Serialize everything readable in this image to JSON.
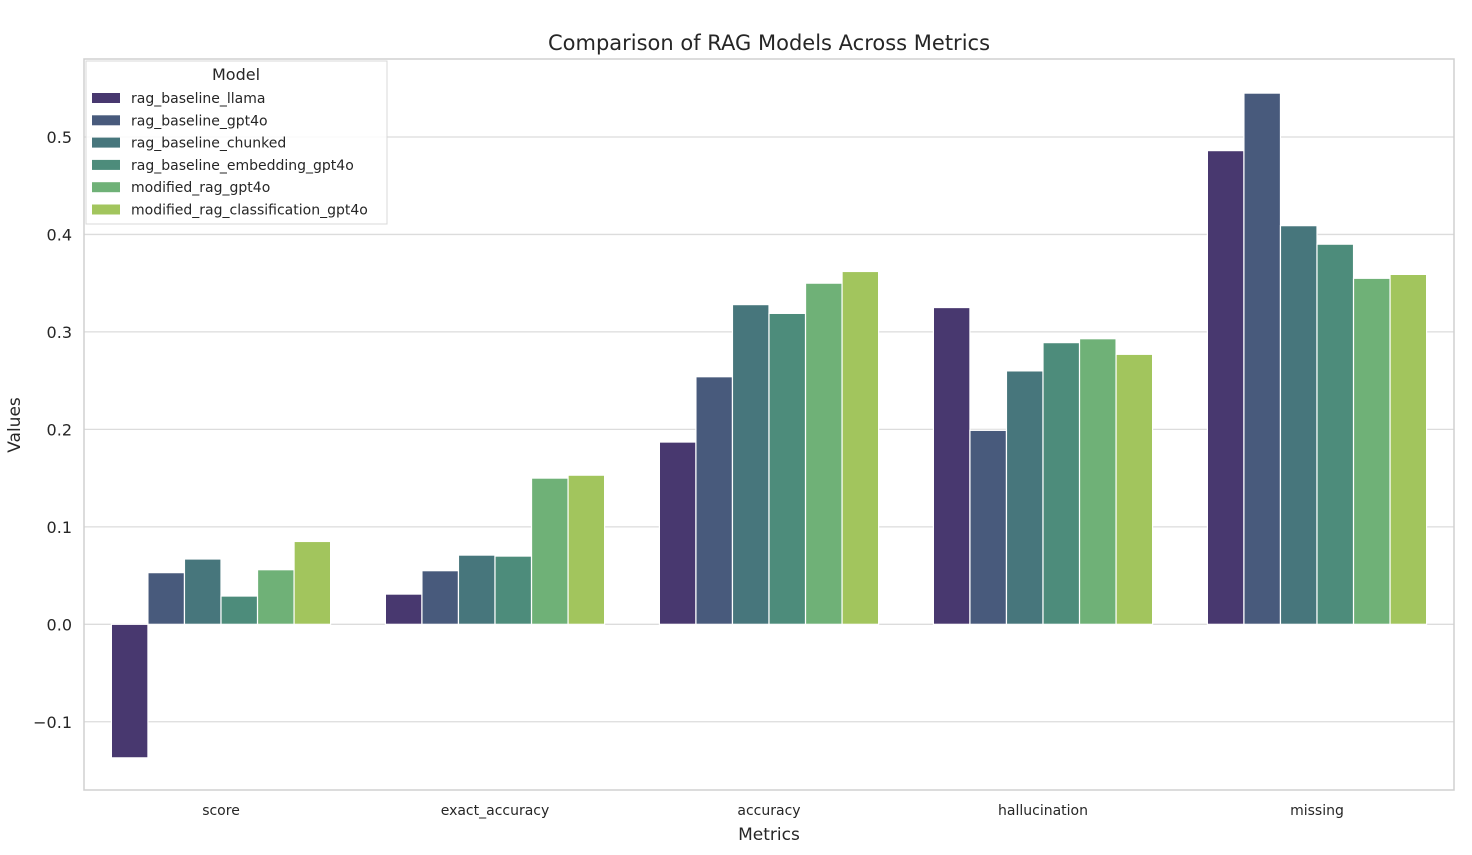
{
  "chart_data": {
    "type": "bar",
    "title": "Comparison of RAG Models Across Metrics",
    "xlabel": "Metrics",
    "ylabel": "Values",
    "categories": [
      "score",
      "exact_accuracy",
      "accuracy",
      "hallucination",
      "missing"
    ],
    "ylim": [
      -0.17,
      0.58
    ],
    "yticks": [
      -0.1,
      0.0,
      0.1,
      0.2,
      0.3,
      0.4,
      0.5
    ],
    "ytick_labels": [
      "−0.1",
      "0.0",
      "0.1",
      "0.2",
      "0.3",
      "0.4",
      "0.5"
    ],
    "grid": true,
    "legend": {
      "title": "Model",
      "placement": "top-left"
    },
    "series": [
      {
        "name": "rag_baseline_llama",
        "color": "#48386f",
        "values": [
          -0.137,
          0.031,
          0.187,
          0.325,
          0.486
        ]
      },
      {
        "name": "rag_baseline_gpt4o",
        "color": "#485a7c",
        "values": [
          0.053,
          0.055,
          0.254,
          0.199,
          0.545
        ]
      },
      {
        "name": "rag_baseline_chunked",
        "color": "#47767c",
        "values": [
          0.067,
          0.071,
          0.328,
          0.26,
          0.409
        ]
      },
      {
        "name": "rag_baseline_embedding_gpt4o",
        "color": "#4d8c7b",
        "values": [
          0.029,
          0.07,
          0.319,
          0.289,
          0.39
        ]
      },
      {
        "name": "modified_rag_gpt4o",
        "color": "#6fb177",
        "values": [
          0.056,
          0.15,
          0.35,
          0.293,
          0.355
        ]
      },
      {
        "name": "modified_rag_classification_gpt4o",
        "color": "#a2c55d",
        "values": [
          0.085,
          0.153,
          0.362,
          0.277,
          0.359
        ]
      }
    ]
  }
}
